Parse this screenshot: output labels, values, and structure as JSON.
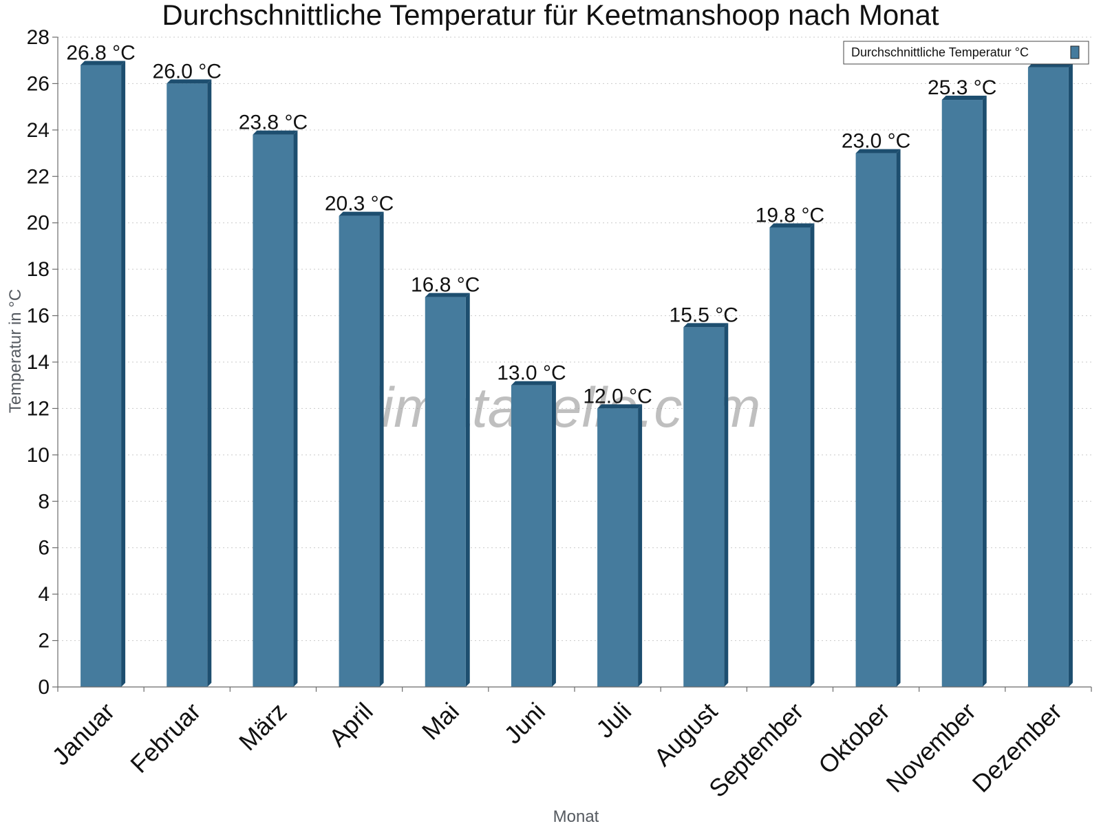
{
  "chart_data": {
    "type": "bar",
    "title": "Durchschnittliche Temperatur für Keetmanshoop nach Monat",
    "xlabel": "Monat",
    "ylabel": "Temperatur in °C",
    "categories": [
      "Januar",
      "Februar",
      "März",
      "April",
      "Mai",
      "Juni",
      "Juli",
      "August",
      "September",
      "Oktober",
      "November",
      "Dezember"
    ],
    "series": [
      {
        "name": "Durchschnittliche Temperatur °C",
        "values": [
          26.8,
          26.0,
          23.8,
          20.3,
          16.8,
          13.0,
          12.0,
          15.5,
          19.8,
          23.0,
          25.3,
          26.7
        ],
        "labels": [
          "26.8 °C",
          "26.0 °C",
          "23.8 °C",
          "20.3 °C",
          "16.8 °C",
          "13.0 °C",
          "12.0 °C",
          "15.5 °C",
          "19.8 °C",
          "23.0 °C",
          "25.3 °C",
          ""
        ]
      }
    ],
    "ylim": [
      0,
      28
    ],
    "yticks": [
      0,
      2,
      4,
      6,
      8,
      10,
      12,
      14,
      16,
      18,
      20,
      22,
      24,
      26,
      28
    ],
    "grid": true,
    "legend_position": "top-right",
    "colors": {
      "bar_front": "#457b9d",
      "bar_side": "#1d4e6f"
    },
    "watermark": "klimatabelle.com"
  }
}
